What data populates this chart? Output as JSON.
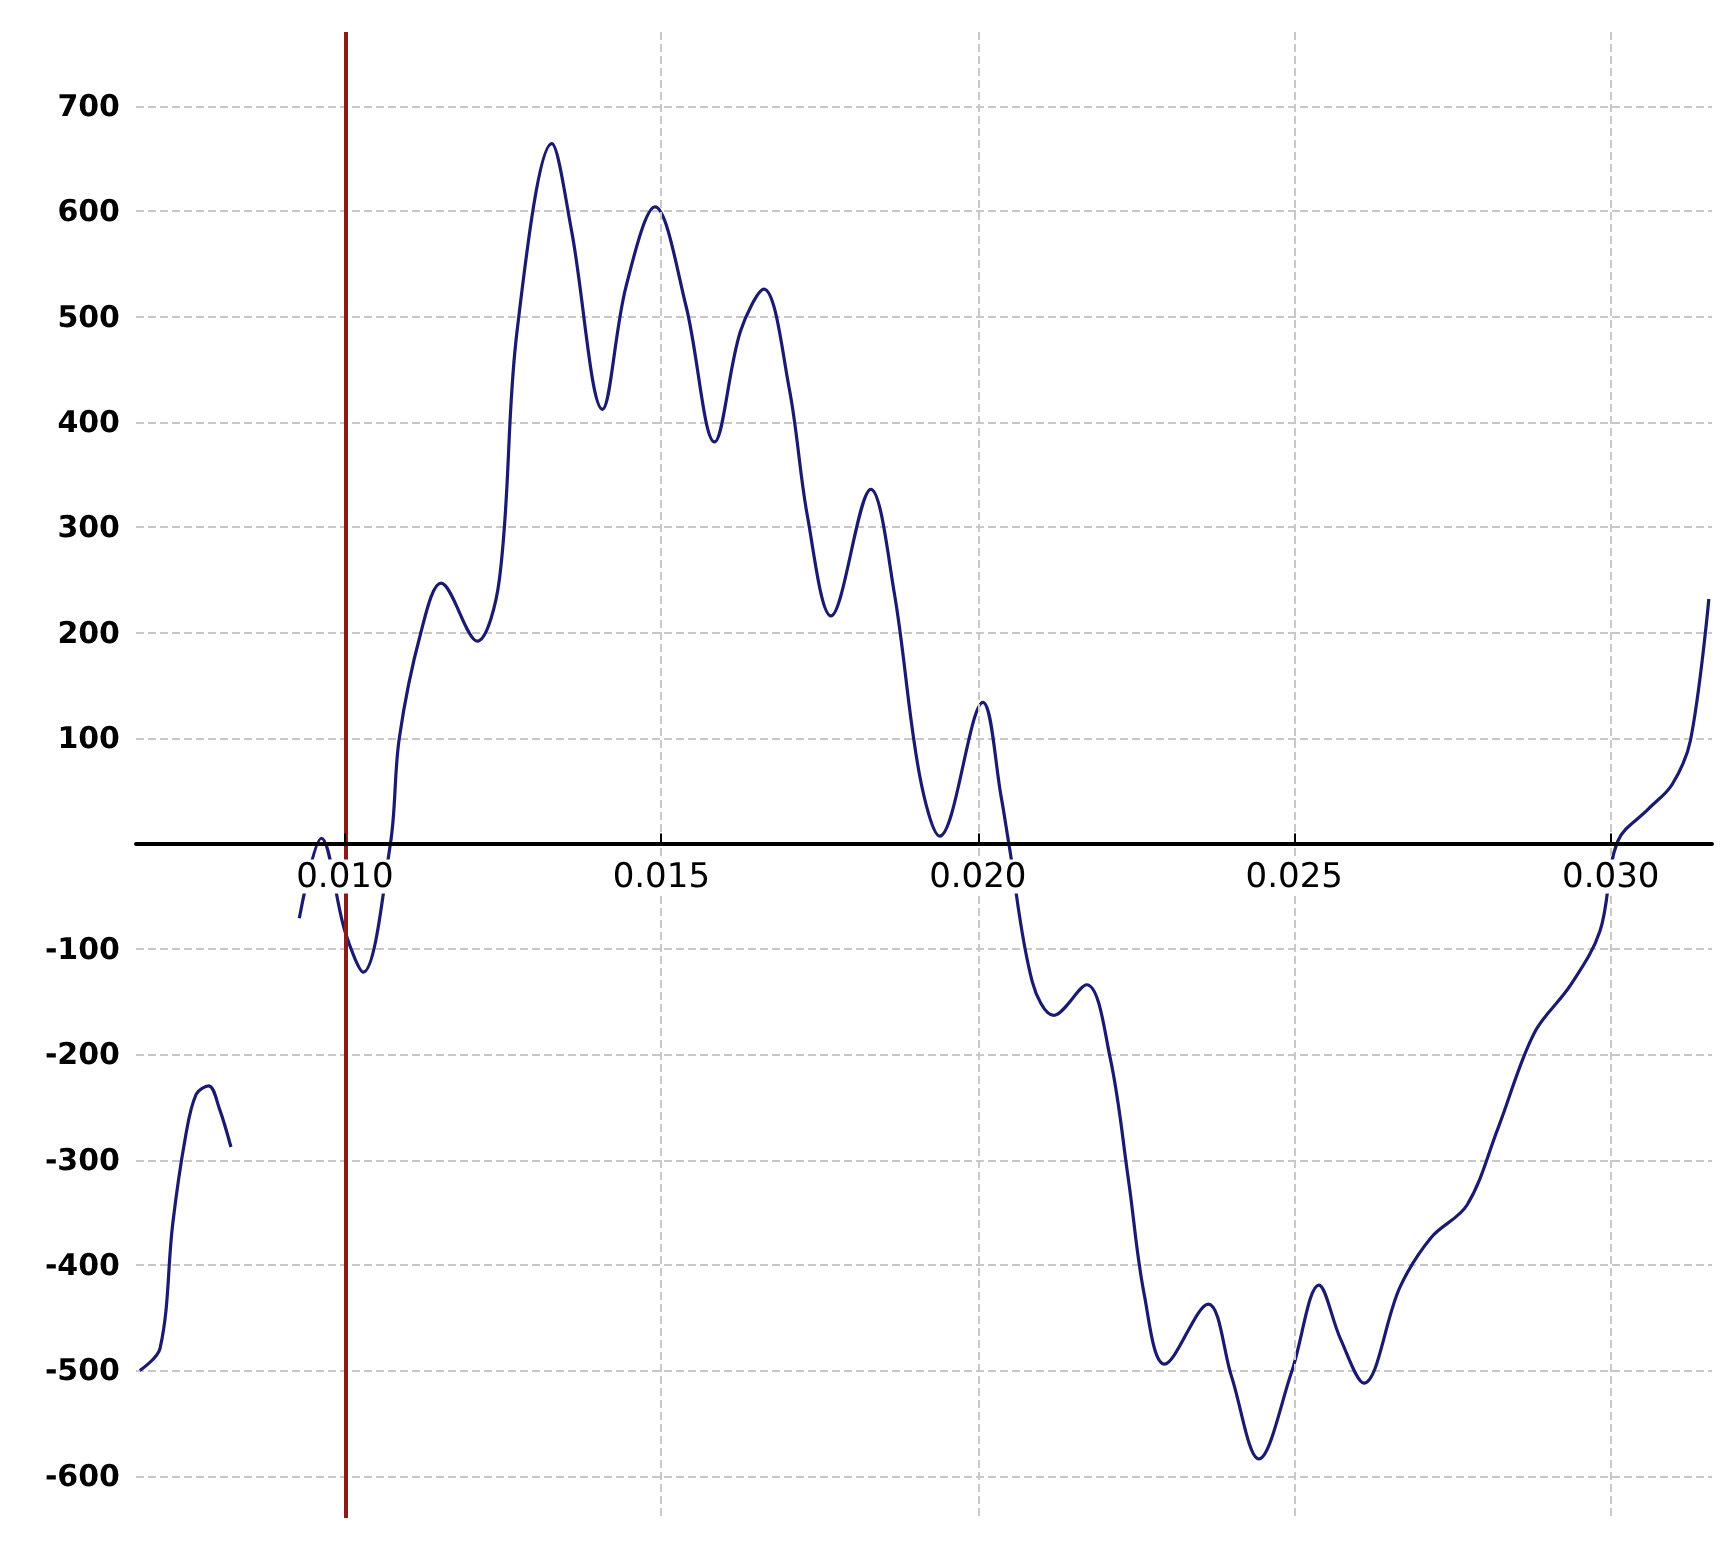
{
  "chart_data": {
    "type": "line",
    "color": "#1a1a70",
    "line_style": "solid",
    "marker": "none",
    "grid": true,
    "xlim": [
      0.0067,
      0.0316
    ],
    "ylim": [
      -640,
      770
    ],
    "xticks": [
      {
        "value": 0.01,
        "label": "0.010"
      },
      {
        "value": 0.015,
        "label": "0.015"
      },
      {
        "value": 0.02,
        "label": "0.020"
      },
      {
        "value": 0.025,
        "label": "0.025"
      },
      {
        "value": 0.03,
        "label": "0.030"
      }
    ],
    "yticks": [
      -600,
      -500,
      -400,
      -300,
      -200,
      -100,
      100,
      200,
      300,
      400,
      500,
      600,
      700
    ],
    "ref_lines": [
      {
        "axis": "x",
        "value": 0.01,
        "color": "#8b1a1a"
      }
    ],
    "x": [
      0.00676,
      0.00708,
      0.00728,
      0.00748,
      0.00765,
      0.00785,
      0.00802,
      0.0082,
      0.0087,
      0.00928,
      0.00963,
      0.01,
      0.01029,
      0.01072,
      0.01086,
      0.0112,
      0.01152,
      0.01209,
      0.01244,
      0.01272,
      0.01327,
      0.01358,
      0.01407,
      0.01444,
      0.0149,
      0.01539,
      0.01584,
      0.01625,
      0.01662,
      0.01702,
      0.01731,
      0.01768,
      0.01831,
      0.01868,
      0.01908,
      0.0194,
      0.02008,
      0.02037,
      0.02049,
      0.02086,
      0.0212,
      0.02172,
      0.02209,
      0.02238,
      0.02263,
      0.02295,
      0.02364,
      0.02401,
      0.02444,
      0.02496,
      0.02539,
      0.02573,
      0.0261,
      0.02667,
      0.02716,
      0.02773,
      0.02822,
      0.02879,
      0.02937,
      0.02983,
      0.03011,
      0.0306,
      0.03097,
      0.03126,
      0.03155
    ],
    "values": [
      -500,
      -479,
      -361,
      -279,
      -238,
      -230,
      -252,
      -288,
      null,
      -71,
      5,
      -83,
      -122,
      0,
      100,
      200,
      247,
      192,
      250,
      486,
      664,
      582,
      412,
      528,
      604,
      510,
      381,
      486,
      526,
      432,
      310,
      216,
      336,
      238,
      65,
      7,
      134,
      44,
      0,
      -131,
      -163,
      -134,
      -203,
      -319,
      -428,
      -494,
      -437,
      -506,
      -584,
      -501,
      -419,
      -470,
      -512,
      -421,
      -374,
      -343,
      -270,
      -180,
      -134,
      -83,
      2,
      33,
      56,
      98,
      232
    ]
  }
}
